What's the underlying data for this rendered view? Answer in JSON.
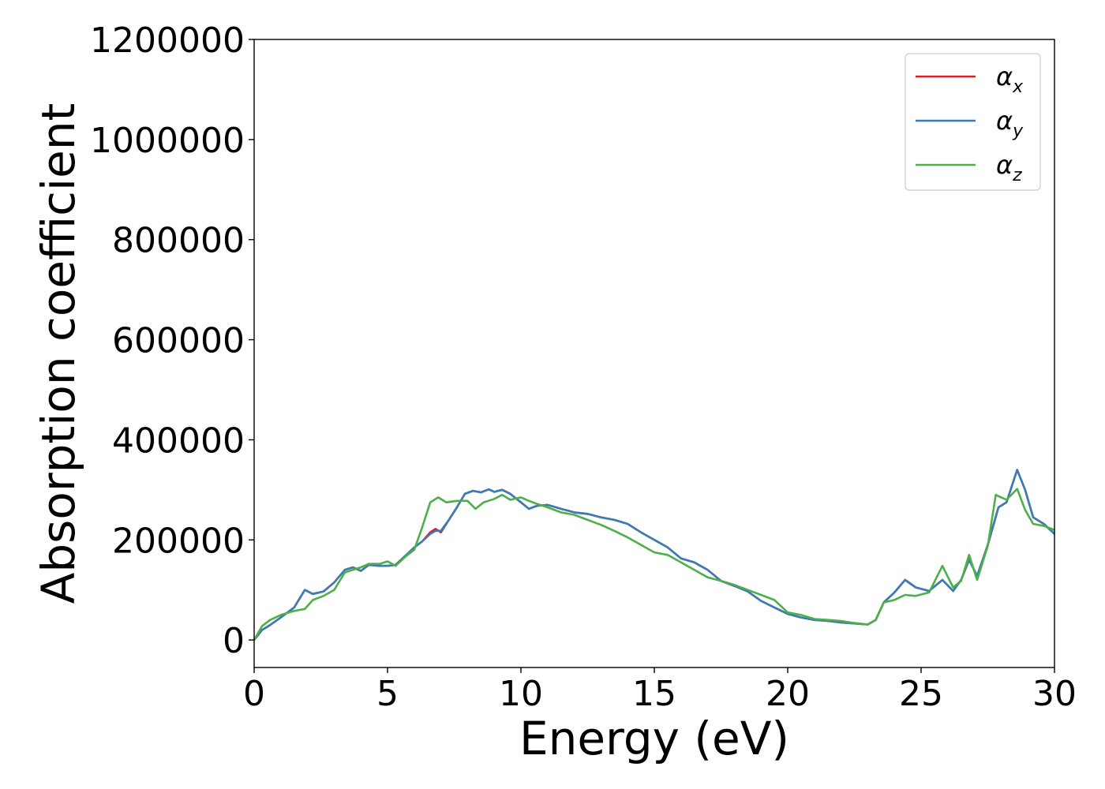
{
  "chart_data": {
    "type": "line",
    "title": "",
    "xlabel": "Energy (eV)",
    "ylabel": "Absorption coefficient",
    "xlim": [
      0,
      30
    ],
    "ylim": [
      -55000,
      1200000
    ],
    "xticks": [
      0,
      5,
      10,
      15,
      20,
      25,
      30
    ],
    "xtick_labels": [
      "0",
      "5",
      "10",
      "15",
      "20",
      "25",
      "30"
    ],
    "yticks": [
      0,
      200000,
      400000,
      600000,
      800000,
      1000000,
      1200000
    ],
    "ytick_labels": [
      "0",
      "200000",
      "400000",
      "600000",
      "800000",
      "1000000",
      "1200000"
    ],
    "grid": false,
    "legend_position": "top-right",
    "series": [
      {
        "name": "α",
        "subscript": "x",
        "color": "#e41a1c",
        "points": [
          [
            0,
            0
          ],
          [
            0.3,
            20000
          ],
          [
            0.6,
            30000
          ],
          [
            1,
            45000
          ],
          [
            1.5,
            65000
          ],
          [
            1.9,
            100000
          ],
          [
            2.2,
            92000
          ],
          [
            2.6,
            97000
          ],
          [
            3,
            115000
          ],
          [
            3.4,
            140000
          ],
          [
            3.7,
            145000
          ],
          [
            4,
            138000
          ],
          [
            4.3,
            150000
          ],
          [
            4.7,
            148000
          ],
          [
            5,
            148000
          ],
          [
            5.3,
            150000
          ],
          [
            5.7,
            170000
          ],
          [
            6,
            185000
          ],
          [
            6.3,
            197000
          ],
          [
            6.6,
            215000
          ],
          [
            6.8,
            222000
          ],
          [
            7,
            215000
          ],
          [
            7.3,
            240000
          ],
          [
            7.6,
            265000
          ],
          [
            7.9,
            292000
          ],
          [
            8.2,
            298000
          ],
          [
            8.5,
            295000
          ],
          [
            8.8,
            301000
          ],
          [
            9,
            296000
          ],
          [
            9.3,
            300000
          ],
          [
            9.6,
            292000
          ],
          [
            10,
            275000
          ],
          [
            10.3,
            262000
          ],
          [
            10.6,
            268000
          ],
          [
            11,
            270000
          ],
          [
            11.5,
            262000
          ],
          [
            12,
            255000
          ],
          [
            12.5,
            252000
          ],
          [
            13,
            245000
          ],
          [
            13.5,
            240000
          ],
          [
            14,
            232000
          ],
          [
            14.5,
            215000
          ],
          [
            15,
            200000
          ],
          [
            15.5,
            185000
          ],
          [
            16,
            163000
          ],
          [
            16.5,
            155000
          ],
          [
            17,
            140000
          ],
          [
            17.5,
            118000
          ],
          [
            18,
            108000
          ],
          [
            18.5,
            97000
          ],
          [
            19,
            78000
          ],
          [
            19.5,
            65000
          ],
          [
            20,
            52000
          ],
          [
            20.5,
            45000
          ],
          [
            21,
            40000
          ],
          [
            21.5,
            38000
          ],
          [
            22,
            35000
          ],
          [
            22.5,
            33000
          ],
          [
            23,
            31000
          ],
          [
            23.3,
            40000
          ],
          [
            23.6,
            75000
          ],
          [
            24,
            95000
          ],
          [
            24.4,
            120000
          ],
          [
            24.8,
            105000
          ],
          [
            25.3,
            98000
          ],
          [
            25.8,
            120000
          ],
          [
            26.2,
            98000
          ],
          [
            26.5,
            120000
          ],
          [
            26.8,
            160000
          ],
          [
            27.1,
            128000
          ],
          [
            27.5,
            190000
          ],
          [
            27.9,
            265000
          ],
          [
            28.2,
            275000
          ],
          [
            28.6,
            340000
          ],
          [
            28.9,
            300000
          ],
          [
            29.2,
            245000
          ],
          [
            29.6,
            232000
          ],
          [
            30,
            212000
          ]
        ]
      },
      {
        "name": "α",
        "subscript": "y",
        "color": "#377eb8",
        "points": [
          [
            0,
            0
          ],
          [
            0.3,
            20000
          ],
          [
            0.6,
            30000
          ],
          [
            1,
            45000
          ],
          [
            1.5,
            65000
          ],
          [
            1.9,
            100000
          ],
          [
            2.2,
            92000
          ],
          [
            2.6,
            97000
          ],
          [
            3,
            115000
          ],
          [
            3.4,
            140000
          ],
          [
            3.7,
            145000
          ],
          [
            4,
            138000
          ],
          [
            4.3,
            150000
          ],
          [
            4.7,
            148000
          ],
          [
            5,
            148000
          ],
          [
            5.3,
            150000
          ],
          [
            5.7,
            170000
          ],
          [
            6,
            185000
          ],
          [
            6.3,
            197000
          ],
          [
            6.6,
            212000
          ],
          [
            6.8,
            218000
          ],
          [
            7,
            218000
          ],
          [
            7.3,
            240000
          ],
          [
            7.6,
            265000
          ],
          [
            7.9,
            292000
          ],
          [
            8.2,
            298000
          ],
          [
            8.5,
            295000
          ],
          [
            8.8,
            301000
          ],
          [
            9,
            296000
          ],
          [
            9.3,
            300000
          ],
          [
            9.6,
            292000
          ],
          [
            10,
            275000
          ],
          [
            10.3,
            262000
          ],
          [
            10.6,
            268000
          ],
          [
            11,
            270000
          ],
          [
            11.5,
            262000
          ],
          [
            12,
            255000
          ],
          [
            12.5,
            252000
          ],
          [
            13,
            245000
          ],
          [
            13.5,
            240000
          ],
          [
            14,
            232000
          ],
          [
            14.5,
            215000
          ],
          [
            15,
            200000
          ],
          [
            15.5,
            185000
          ],
          [
            16,
            163000
          ],
          [
            16.5,
            155000
          ],
          [
            17,
            140000
          ],
          [
            17.5,
            118000
          ],
          [
            18,
            108000
          ],
          [
            18.5,
            97000
          ],
          [
            19,
            78000
          ],
          [
            19.5,
            65000
          ],
          [
            20,
            52000
          ],
          [
            20.5,
            45000
          ],
          [
            21,
            40000
          ],
          [
            21.5,
            38000
          ],
          [
            22,
            35000
          ],
          [
            22.5,
            33000
          ],
          [
            23,
            31000
          ],
          [
            23.3,
            40000
          ],
          [
            23.6,
            75000
          ],
          [
            24,
            95000
          ],
          [
            24.4,
            120000
          ],
          [
            24.8,
            105000
          ],
          [
            25.3,
            98000
          ],
          [
            25.8,
            120000
          ],
          [
            26.2,
            98000
          ],
          [
            26.5,
            120000
          ],
          [
            26.8,
            160000
          ],
          [
            27.1,
            128000
          ],
          [
            27.5,
            190000
          ],
          [
            27.9,
            265000
          ],
          [
            28.2,
            275000
          ],
          [
            28.6,
            340000
          ],
          [
            28.9,
            300000
          ],
          [
            29.2,
            245000
          ],
          [
            29.6,
            232000
          ],
          [
            30,
            212000
          ]
        ]
      },
      {
        "name": "α",
        "subscript": "z",
        "color": "#4daf4a",
        "points": [
          [
            0,
            0
          ],
          [
            0.3,
            28000
          ],
          [
            0.6,
            40000
          ],
          [
            1,
            50000
          ],
          [
            1.5,
            58000
          ],
          [
            1.9,
            62000
          ],
          [
            2.2,
            80000
          ],
          [
            2.6,
            88000
          ],
          [
            3,
            100000
          ],
          [
            3.4,
            135000
          ],
          [
            3.7,
            140000
          ],
          [
            4,
            145000
          ],
          [
            4.3,
            152000
          ],
          [
            4.7,
            152000
          ],
          [
            5,
            157000
          ],
          [
            5.3,
            148000
          ],
          [
            5.7,
            168000
          ],
          [
            6,
            180000
          ],
          [
            6.3,
            225000
          ],
          [
            6.6,
            275000
          ],
          [
            6.9,
            285000
          ],
          [
            7.2,
            275000
          ],
          [
            7.6,
            278000
          ],
          [
            8,
            278000
          ],
          [
            8.3,
            262000
          ],
          [
            8.6,
            275000
          ],
          [
            9,
            282000
          ],
          [
            9.3,
            290000
          ],
          [
            9.6,
            280000
          ],
          [
            10,
            285000
          ],
          [
            10.3,
            278000
          ],
          [
            10.6,
            272000
          ],
          [
            11,
            265000
          ],
          [
            11.5,
            255000
          ],
          [
            12,
            250000
          ],
          [
            12.5,
            240000
          ],
          [
            13,
            230000
          ],
          [
            13.5,
            218000
          ],
          [
            14,
            205000
          ],
          [
            14.5,
            190000
          ],
          [
            15,
            175000
          ],
          [
            15.5,
            170000
          ],
          [
            16,
            155000
          ],
          [
            16.5,
            140000
          ],
          [
            17,
            125000
          ],
          [
            17.5,
            118000
          ],
          [
            18,
            110000
          ],
          [
            18.5,
            100000
          ],
          [
            19,
            90000
          ],
          [
            19.5,
            80000
          ],
          [
            20,
            55000
          ],
          [
            20.5,
            50000
          ],
          [
            21,
            42000
          ],
          [
            21.5,
            40000
          ],
          [
            22,
            38000
          ],
          [
            22.5,
            34000
          ],
          [
            23,
            31000
          ],
          [
            23.3,
            40000
          ],
          [
            23.6,
            75000
          ],
          [
            24,
            80000
          ],
          [
            24.4,
            90000
          ],
          [
            24.8,
            88000
          ],
          [
            25.3,
            95000
          ],
          [
            25.8,
            148000
          ],
          [
            26.2,
            105000
          ],
          [
            26.5,
            118000
          ],
          [
            26.8,
            170000
          ],
          [
            27.1,
            120000
          ],
          [
            27.5,
            188000
          ],
          [
            27.8,
            290000
          ],
          [
            28.2,
            280000
          ],
          [
            28.6,
            302000
          ],
          [
            28.9,
            260000
          ],
          [
            29.2,
            232000
          ],
          [
            29.6,
            228000
          ],
          [
            30,
            220000
          ]
        ]
      }
    ]
  }
}
